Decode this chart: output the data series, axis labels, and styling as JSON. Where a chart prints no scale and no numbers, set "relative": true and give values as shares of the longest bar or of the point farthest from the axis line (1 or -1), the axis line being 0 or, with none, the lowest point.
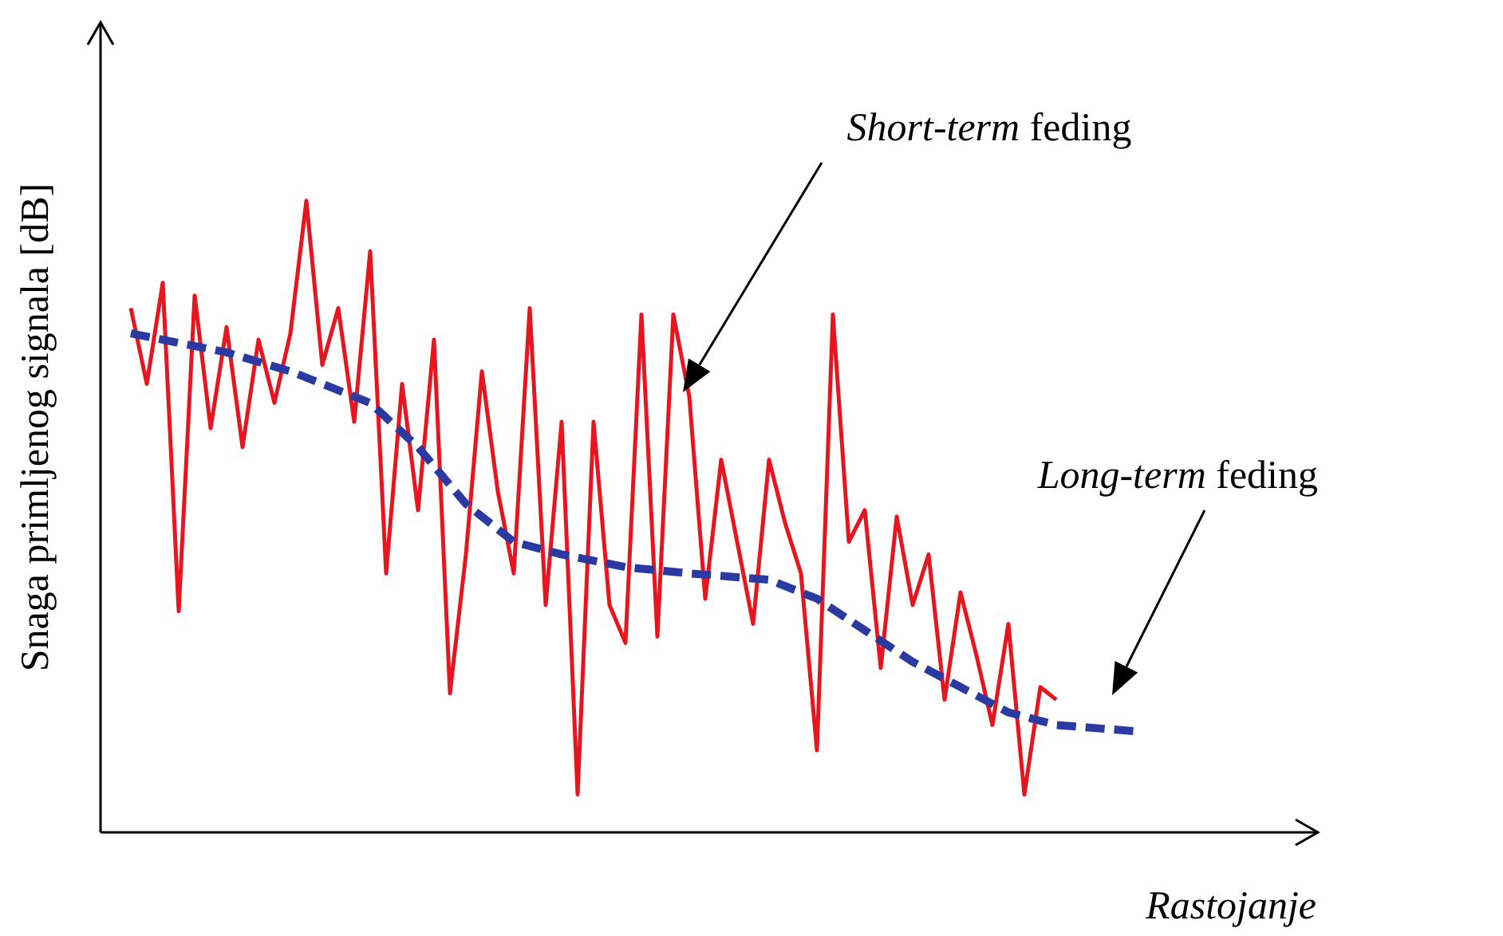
{
  "chart_data": {
    "type": "line",
    "relative": true,
    "xlabel": "Rastojanje",
    "ylabel": "Snaga primljenog signala [dB]",
    "annotations": [
      "Short-term feding",
      "Long-term feding"
    ],
    "categories": [
      null,
      null,
      null,
      null,
      null,
      null,
      null,
      null,
      null,
      null,
      null,
      null,
      null,
      null,
      null,
      null,
      null,
      null,
      null,
      null,
      null,
      null,
      null,
      null,
      null,
      null,
      null,
      null,
      null,
      null,
      null,
      null,
      null,
      null,
      null,
      null,
      null,
      null,
      null,
      null,
      null,
      null,
      null,
      null,
      null,
      null,
      null,
      null,
      null,
      null,
      null,
      null,
      null,
      null,
      null,
      null,
      null,
      null,
      null,
      null,
      null,
      null,
      null,
      null
    ],
    "series": [
      {
        "color": "#e8141e",
        "line_style": "solid",
        "values": [
          0.83,
          0.71,
          0.87,
          0.35,
          0.85,
          0.64,
          0.8,
          0.61,
          0.78,
          0.68,
          0.79,
          1,
          0.74,
          0.83,
          0.65,
          0.92,
          0.41,
          0.71,
          0.51,
          0.78,
          0.22,
          0.44,
          0.73,
          0.54,
          0.41,
          0.83,
          0.36,
          0.65,
          0.06,
          0.65,
          0.36,
          0.3,
          0.82,
          0.31,
          0.82,
          0.69,
          0.37,
          0.59,
          0.46,
          0.33,
          0.59,
          0.49,
          0.41,
          0.13,
          0.82,
          0.46,
          0.51,
          0.26,
          0.5,
          0.36,
          0.44,
          0.21,
          0.38,
          0.28,
          0.17,
          0.33,
          0.06,
          0.23,
          0.21,
          null,
          null,
          null,
          null,
          null
        ]
      },
      {
        "color": "#2b3aa0",
        "line_style": "dashed",
        "values": [
          0.79,
          null,
          null,
          null,
          null,
          null,
          0.76,
          null,
          null,
          null,
          0.73,
          null,
          null,
          null,
          null,
          0.68,
          null,
          null,
          0.61,
          null,
          null,
          0.52,
          null,
          null,
          0.46,
          null,
          null,
          0.44,
          null,
          null,
          null,
          0.42,
          null,
          null,
          null,
          0.41,
          null,
          null,
          null,
          null,
          0.4,
          null,
          null,
          0.37,
          null,
          null,
          0.32,
          null,
          null,
          0.27,
          null,
          null,
          0.23,
          null,
          null,
          0.19,
          null,
          null,
          0.17,
          null,
          null,
          null,
          null,
          0.16
        ]
      }
    ],
    "grid": false,
    "legend": false,
    "marker": "none"
  }
}
